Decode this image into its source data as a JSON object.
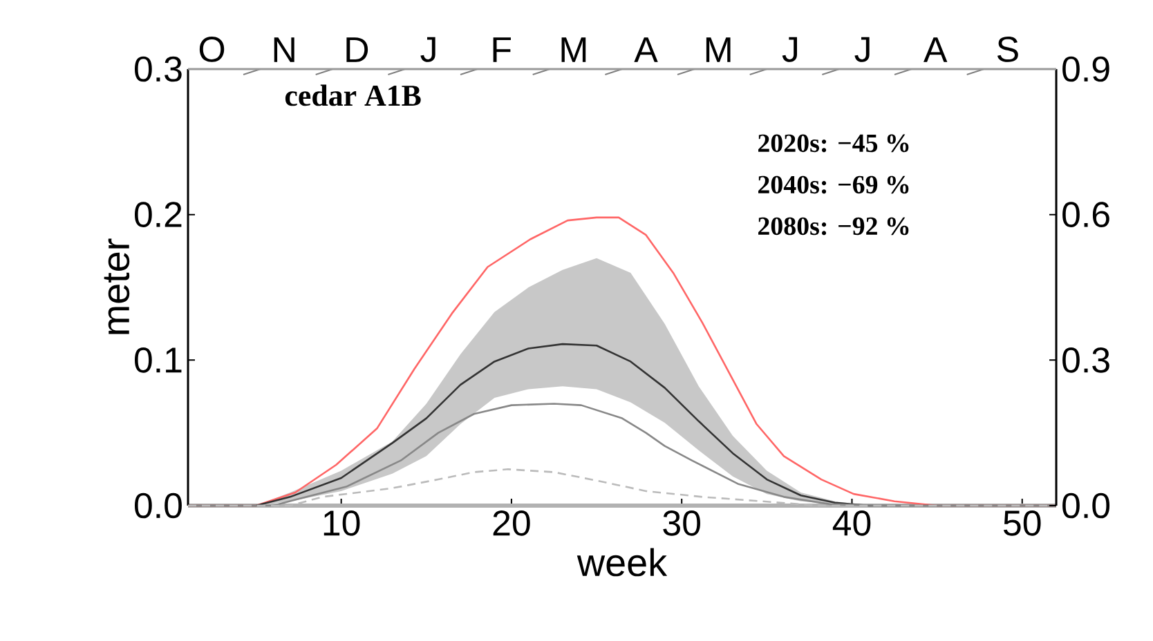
{
  "chart_data": {
    "type": "line",
    "title": "cedar A1B",
    "xlabel": "week",
    "ylabel": "meter",
    "annotations": [
      "2020s: −45 %",
      "2040s: −69 %",
      "2080s: −92 %",
      "O",
      "N",
      "D",
      "J",
      "F",
      "M",
      "A",
      "M",
      "J",
      "J",
      "A",
      "S"
    ],
    "xlim": [
      1,
      52
    ],
    "xticks": [
      10,
      20,
      30,
      40,
      50
    ],
    "ylim": [
      0,
      0.3
    ],
    "yticks": [
      {
        "value": 0,
        "label": "0.0"
      },
      {
        "value": 0.1,
        "label": "0.1"
      },
      {
        "value": 0.2,
        "label": "0.2"
      },
      {
        "value": 0.3,
        "label": "0.3"
      }
    ],
    "y2lim": [
      0,
      0.9
    ],
    "y2ticks": [
      {
        "value": 0,
        "label": "0.0"
      },
      {
        "value": 0.3,
        "label": "0.3"
      },
      {
        "value": 0.6,
        "label": "0.6"
      },
      {
        "value": 0.9,
        "label": "0.9"
      }
    ],
    "grid": false,
    "series": [
      {
        "color": "#ff6666",
        "line_style": "solid",
        "x": [
          1,
          5,
          7.3,
          9.7,
          12.1,
          14.3,
          16.5,
          18.6,
          21.1,
          23.3,
          25,
          26.3,
          27.9,
          29.5,
          31.2,
          32.8,
          34.4,
          36,
          38.2,
          40.1,
          42.5,
          45,
          52
        ],
        "values": [
          0,
          0,
          0.009,
          0.028,
          0.053,
          0.094,
          0.132,
          0.164,
          0.183,
          0.196,
          0.198,
          0.198,
          0.186,
          0.16,
          0.126,
          0.091,
          0.056,
          0.034,
          0.018,
          0.008,
          0.003,
          0,
          0
        ]
      },
      {
        "color": "#333333",
        "line_style": "solid",
        "x": [
          1,
          5,
          7,
          10,
          13,
          15,
          17,
          19,
          21,
          23,
          25,
          27,
          29,
          31,
          33,
          35,
          37,
          39,
          41,
          45,
          52
        ],
        "values": [
          0,
          0,
          0.006,
          0.019,
          0.043,
          0.06,
          0.083,
          0.099,
          0.108,
          0.111,
          0.11,
          0.099,
          0.081,
          0.058,
          0.036,
          0.018,
          0.007,
          0.002,
          0,
          0,
          0
        ],
        "upper": [
          0,
          0,
          0.009,
          0.024,
          0.044,
          0.07,
          0.104,
          0.133,
          0.15,
          0.162,
          0.17,
          0.16,
          0.125,
          0.082,
          0.048,
          0.024,
          0.009,
          0.003,
          0,
          0,
          0
        ],
        "lower": [
          0,
          0,
          0.003,
          0.01,
          0.022,
          0.034,
          0.056,
          0.074,
          0.08,
          0.082,
          0.08,
          0.071,
          0.057,
          0.038,
          0.02,
          0.008,
          0.003,
          0.001,
          0,
          0,
          0
        ]
      },
      {
        "color": "#888888",
        "line_style": "solid",
        "x": [
          1,
          6,
          7.3,
          10.3,
          13.5,
          15.7,
          17.8,
          20,
          22.5,
          24.1,
          26.5,
          27.9,
          29,
          30.6,
          33.3,
          36,
          38.7,
          42,
          52
        ],
        "values": [
          0,
          0,
          0.004,
          0.013,
          0.031,
          0.05,
          0.063,
          0.069,
          0.07,
          0.069,
          0.06,
          0.05,
          0.041,
          0.031,
          0.015,
          0.006,
          0.001,
          0,
          0
        ]
      },
      {
        "color": "#bbbbbb",
        "line_style": "dashed",
        "x": [
          1,
          7,
          8.9,
          13,
          15.7,
          17.8,
          19.8,
          22.5,
          25.1,
          27.9,
          31.2,
          34.7,
          38,
          52
        ],
        "values": [
          0,
          0,
          0.006,
          0.012,
          0.018,
          0.023,
          0.025,
          0.023,
          0.017,
          0.01,
          0.006,
          0.003,
          0,
          0
        ]
      }
    ]
  }
}
